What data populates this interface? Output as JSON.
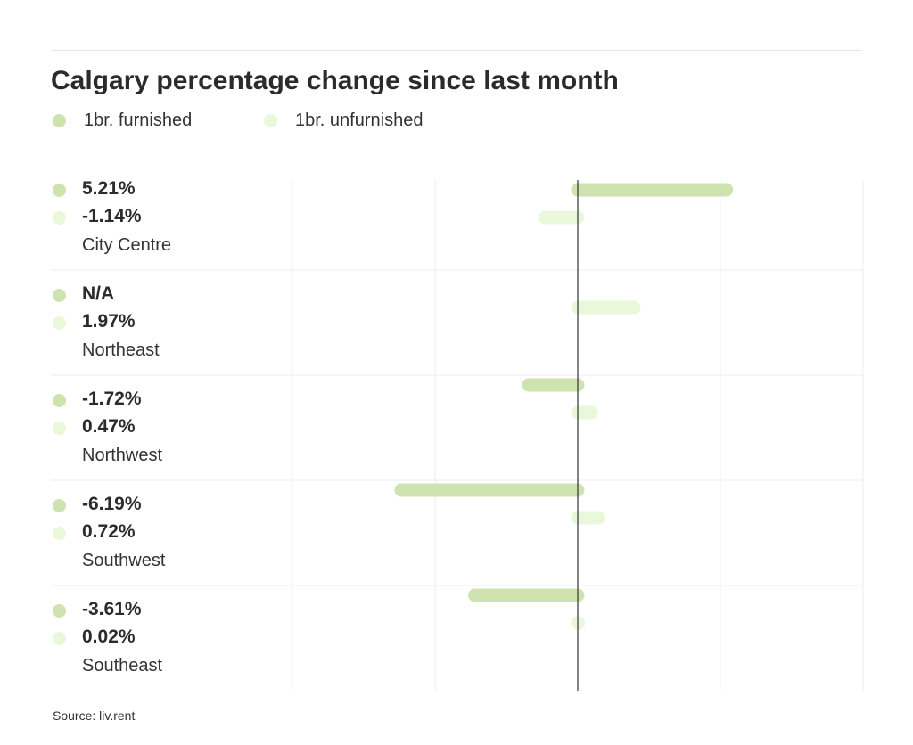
{
  "chart_data": {
    "type": "bar",
    "orientation": "horizontal",
    "title": "Calgary percentage change since last month",
    "categories": [
      "City Centre",
      "Northeast",
      "Northwest",
      "Southwest",
      "Southeast"
    ],
    "series": [
      {
        "name": "1br. furnished",
        "color": "#cfe3b0",
        "values": [
          5.21,
          null,
          -1.72,
          -6.19,
          -3.61
        ],
        "labels": [
          "5.21%",
          "N/A",
          "-1.72%",
          "-6.19%",
          "-3.61%"
        ]
      },
      {
        "name": "1br. unfurnished",
        "color": "#e9f7da",
        "values": [
          -1.14,
          1.97,
          0.47,
          0.72,
          0.02
        ],
        "labels": [
          "-1.14%",
          "1.97%",
          "0.47%",
          "0.72%",
          "0.02%"
        ]
      }
    ],
    "xlim": [
      -10,
      10
    ],
    "grid": true,
    "legend": "top-left",
    "source": "Source: liv.rent"
  }
}
